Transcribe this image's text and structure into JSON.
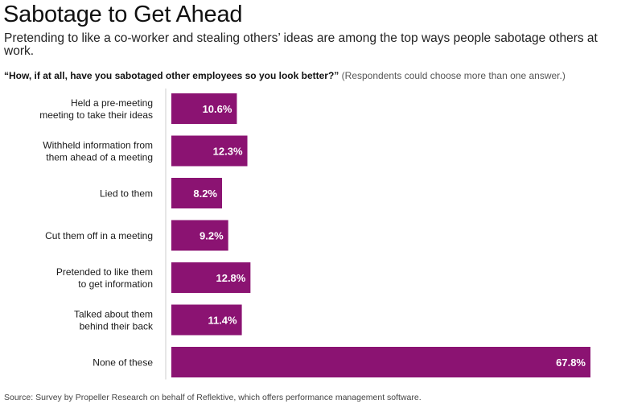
{
  "header": {
    "title": "Sabotage to Get Ahead",
    "subtitle": "Pretending to like a co-worker and stealing others’ ideas are among the top ways people sabotage others at work.",
    "question": "“How, if at all, have you sabotaged other employees so you look better?”",
    "question_note": "(Respondents could choose more than one answer.)"
  },
  "footer": {
    "source": "Source: Survey by Propeller Research on behalf of Reflektive, which offers performance management software."
  },
  "colors": {
    "bar": "#8b1372",
    "bar_label": "#ffffff",
    "axis": "#cccccc",
    "category_label": "#1a1a1a"
  },
  "chart_data": {
    "type": "bar",
    "orientation": "horizontal",
    "title": "Sabotage to Get Ahead",
    "xlabel": "",
    "ylabel": "",
    "xlim": [
      0,
      67.8
    ],
    "unit": "%",
    "categories": [
      [
        "Held a pre-meeting",
        "meeting to take their ideas"
      ],
      [
        "Withheld information from",
        "them ahead of a meeting"
      ],
      [
        "Lied to them"
      ],
      [
        "Cut them off in a meeting"
      ],
      [
        "Pretended to like them",
        "to get information"
      ],
      [
        "Talked about them",
        "behind their back"
      ],
      [
        "None of these"
      ]
    ],
    "values": [
      10.6,
      12.3,
      8.2,
      9.2,
      12.8,
      11.4,
      67.8
    ],
    "value_labels": [
      "10.6%",
      "12.3%",
      "8.2%",
      "9.2%",
      "12.8%",
      "11.4%",
      "67.8%"
    ]
  }
}
